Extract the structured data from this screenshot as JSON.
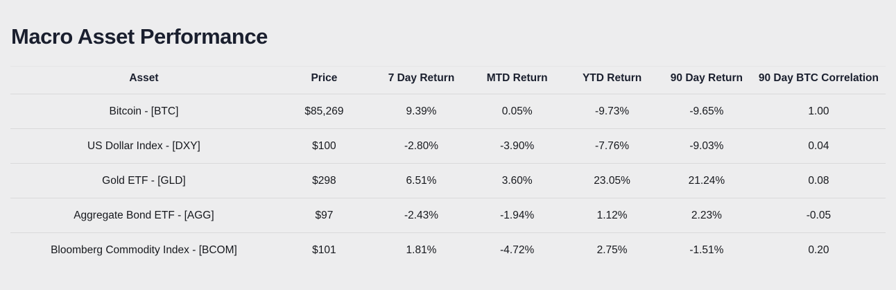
{
  "page": {
    "title": "Macro Asset Performance"
  },
  "colors": {
    "background": "#ededee",
    "heading": "#1a1f2e",
    "text": "#16181d",
    "positive": "#17803a",
    "negative": "#e52e2e",
    "divider": "#d9d9da"
  },
  "chart_data": {
    "type": "table",
    "title": "Macro Asset Performance",
    "columns": [
      "Asset",
      "Price",
      "7 Day Return",
      "MTD Return",
      "YTD Return",
      "90 Day Return",
      "90 Day BTC Correlation"
    ],
    "rows": [
      {
        "cells": [
          {
            "text": "Bitcoin - [BTC]",
            "tone": "neutral"
          },
          {
            "text": "$85,269",
            "tone": "neutral"
          },
          {
            "text": "9.39%",
            "tone": "positive"
          },
          {
            "text": "0.05%",
            "tone": "positive"
          },
          {
            "text": "-9.73%",
            "tone": "negative"
          },
          {
            "text": "-9.65%",
            "tone": "negative"
          },
          {
            "text": "1.00",
            "tone": "positive"
          }
        ]
      },
      {
        "cells": [
          {
            "text": "US Dollar Index - [DXY]",
            "tone": "neutral"
          },
          {
            "text": "$100",
            "tone": "neutral"
          },
          {
            "text": "-2.80%",
            "tone": "negative"
          },
          {
            "text": "-3.90%",
            "tone": "negative"
          },
          {
            "text": "-7.76%",
            "tone": "negative"
          },
          {
            "text": "-9.03%",
            "tone": "negative"
          },
          {
            "text": "0.04",
            "tone": "positive"
          }
        ]
      },
      {
        "cells": [
          {
            "text": "Gold ETF - [GLD]",
            "tone": "neutral"
          },
          {
            "text": "$298",
            "tone": "neutral"
          },
          {
            "text": "6.51%",
            "tone": "positive"
          },
          {
            "text": "3.60%",
            "tone": "positive"
          },
          {
            "text": "23.05%",
            "tone": "positive"
          },
          {
            "text": "21.24%",
            "tone": "positive"
          },
          {
            "text": "0.08",
            "tone": "positive"
          }
        ]
      },
      {
        "cells": [
          {
            "text": "Aggregate Bond ETF - [AGG]",
            "tone": "neutral"
          },
          {
            "text": "$97",
            "tone": "neutral"
          },
          {
            "text": "-2.43%",
            "tone": "negative"
          },
          {
            "text": "-1.94%",
            "tone": "negative"
          },
          {
            "text": "1.12%",
            "tone": "positive"
          },
          {
            "text": "2.23%",
            "tone": "positive"
          },
          {
            "text": "-0.05",
            "tone": "negative"
          }
        ]
      },
      {
        "cells": [
          {
            "text": "Bloomberg Commodity Index - [BCOM]",
            "tone": "neutral"
          },
          {
            "text": "$101",
            "tone": "neutral"
          },
          {
            "text": "1.81%",
            "tone": "positive"
          },
          {
            "text": "-4.72%",
            "tone": "negative"
          },
          {
            "text": "2.75%",
            "tone": "positive"
          },
          {
            "text": "-1.51%",
            "tone": "negative"
          },
          {
            "text": "0.20",
            "tone": "positive"
          }
        ]
      }
    ]
  }
}
